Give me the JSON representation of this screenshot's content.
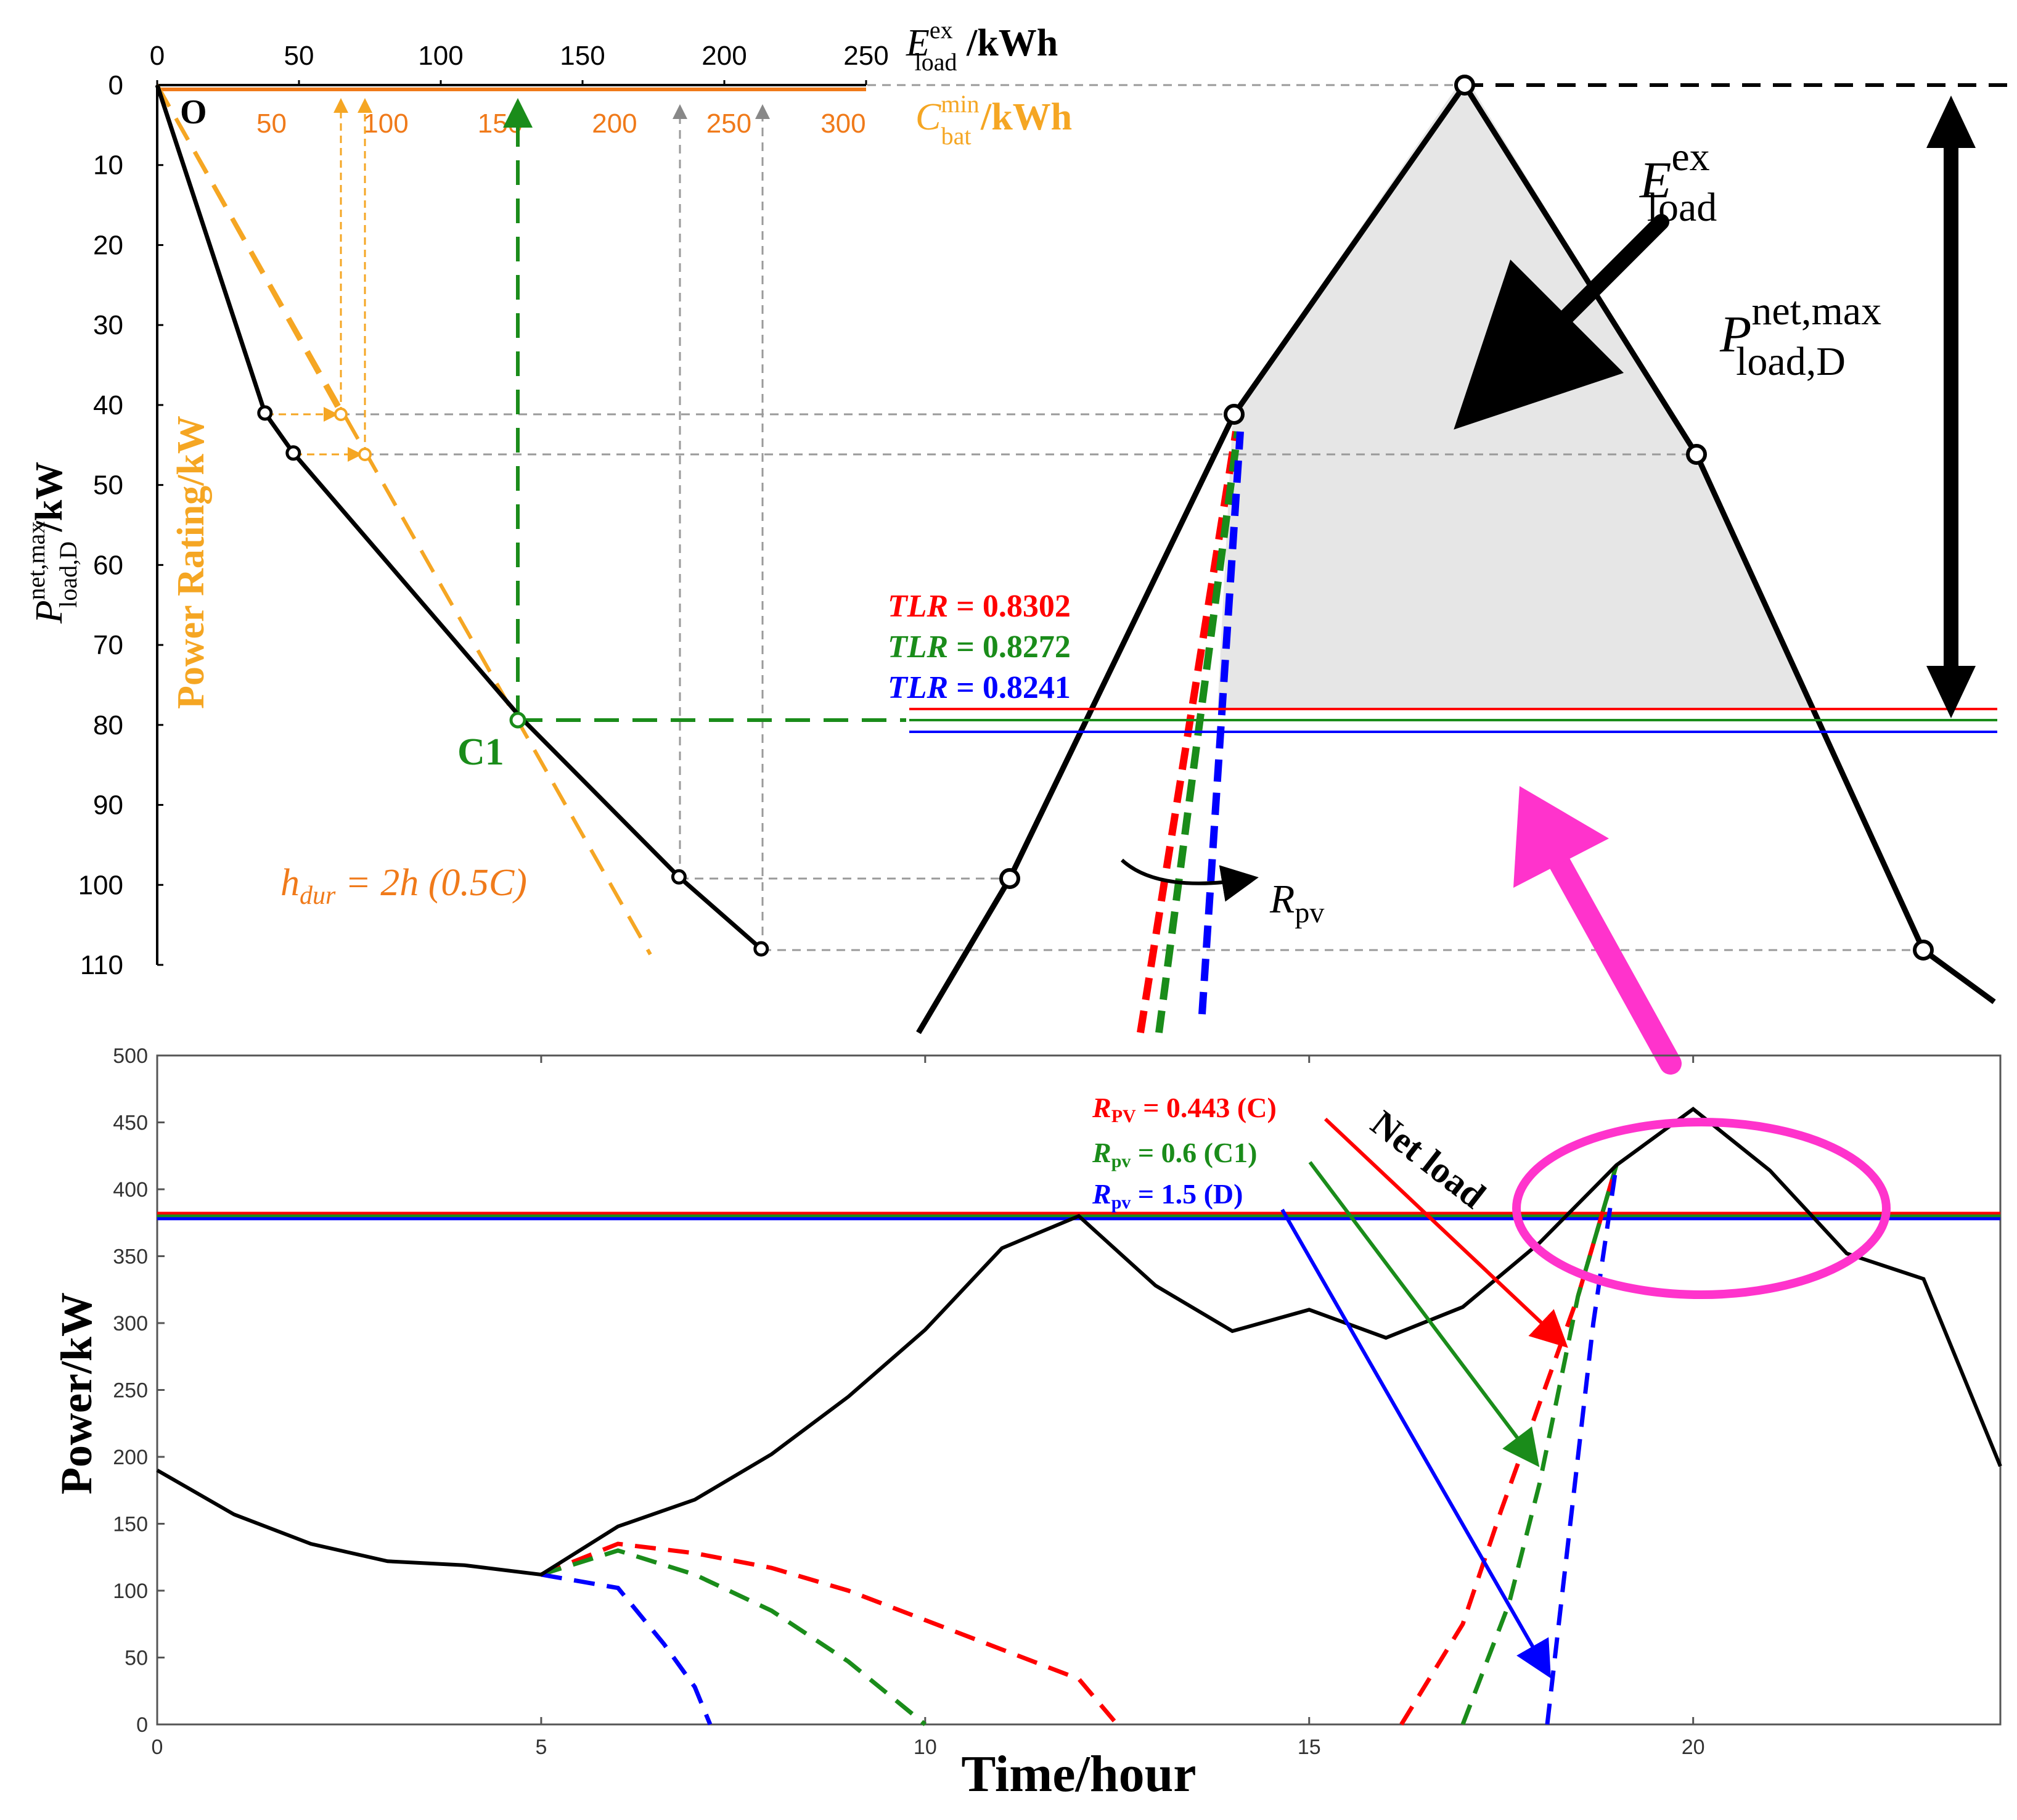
{
  "colors": {
    "orange": "#f5a623",
    "orange2": "#f07a1a",
    "green": "#1a8c1a",
    "red": "#ff0000",
    "blue": "#0000ff",
    "gray": "#9a9a9a",
    "magenta": "#ff33cc",
    "shade": "#e6e6e6"
  },
  "top": {
    "top_axis_label": "E",
    "top_axis_sup": "ex",
    "top_axis_sub": "load",
    "top_axis_unit": " /kWh",
    "orange_axis_label": "C",
    "orange_axis_sup": "min",
    "orange_axis_sub": "bat",
    "orange_axis_unit": " /kWh",
    "y_label": "P",
    "y_label_sup": "net,max",
    "y_label_sub": "load,D",
    "y_label_unit": " /kW",
    "power_rating_label": "Power Rating/kW",
    "origin_label": "O",
    "c1_label": "C1",
    "hdur_label": "h",
    "hdur_sub": "dur",
    "hdur_rest": " = 2h (0.5C)",
    "eload_label": "E",
    "eload_sup": "ex",
    "eload_sub": "load",
    "pnet_label": "P",
    "pnet_sup": "net,max",
    "pnet_sub": "load,D",
    "rpv_label": "R",
    "rpv_sub": "pv",
    "tlr": [
      {
        "label": "TLR = 0.8302",
        "color": "red"
      },
      {
        "label": "TLR = 0.8272",
        "color": "green"
      },
      {
        "label": "TLR = 0.8241",
        "color": "blue"
      }
    ]
  },
  "chart_data": [
    {
      "type": "line",
      "title": "",
      "x_top_ticks": [
        0,
        50,
        100,
        150,
        200,
        250
      ],
      "x_orange_ticks": [
        50,
        100,
        150,
        200,
        250,
        300
      ],
      "y_ticks": [
        0,
        10,
        20,
        30,
        40,
        50,
        60,
        70,
        80,
        90,
        100,
        110
      ],
      "ylim": [
        0,
        110
      ],
      "xlim": [
        0,
        250
      ],
      "series": [
        {
          "x": [
            0,
            38,
            48,
            128,
            184,
            213
          ],
          "y": [
            0,
            41,
            46,
            79,
            99,
            108
          ]
        }
      ],
      "c1_point": {
        "x": 128,
        "y": 79
      }
    },
    {
      "type": "line",
      "title": "",
      "xlabel": "Time/hour",
      "ylabel": "Power/kW",
      "xlim": [
        0,
        24
      ],
      "ylim": [
        0,
        500
      ],
      "x_ticks": [
        0,
        5,
        10,
        15,
        20
      ],
      "y_ticks": [
        0,
        50,
        100,
        150,
        200,
        250,
        300,
        350,
        400,
        450,
        500
      ],
      "net_load": {
        "name": "Net load",
        "x": [
          0,
          1,
          2,
          3,
          4,
          5,
          6,
          7,
          8,
          9,
          10,
          11,
          12,
          13,
          14,
          15,
          16,
          17,
          18,
          19,
          20,
          21,
          22,
          23,
          24
        ],
        "y": [
          190,
          157,
          135,
          122,
          119,
          112,
          148,
          168,
          202,
          245,
          295,
          356,
          380,
          328,
          294,
          310,
          289,
          312,
          360,
          418,
          460,
          414,
          352,
          333,
          193
        ]
      },
      "threshold_lines": [
        {
          "color": "red",
          "value": 382
        },
        {
          "color": "green",
          "value": 380
        },
        {
          "color": "blue",
          "value": 378
        }
      ],
      "pv_curves": [
        {
          "label_r": "R",
          "label_sub": "PV",
          "label_rest": " = 0.443 (C)",
          "color": "red",
          "morning": {
            "x": [
              5,
              6,
              7,
              8,
              9,
              10,
              11,
              12,
              12.5
            ],
            "y": [
              112,
              135,
              128,
              117,
              100,
              78,
              56,
              34,
              0
            ]
          },
          "evening": {
            "x": [
              16.2,
              17,
              17.5,
              18,
              18.5,
              19
            ],
            "y": [
              0,
              75,
              160,
              240,
              320,
              418
            ]
          }
        },
        {
          "label_r": "R",
          "label_sub": "pv",
          "label_rest": " = 0.6 (C1)",
          "color": "green",
          "morning": {
            "x": [
              5,
              6,
              7,
              8,
              9,
              10
            ],
            "y": [
              112,
              130,
              112,
              85,
              47,
              0
            ]
          },
          "evening": {
            "x": [
              17,
              17.6,
              18,
              18.5,
              19
            ],
            "y": [
              0,
              90,
              180,
              320,
              418
            ]
          }
        },
        {
          "label_r": "R",
          "label_sub": "pv",
          "label_rest": " = 1.5 (D)",
          "color": "blue",
          "morning": {
            "x": [
              5,
              6,
              6.6,
              7,
              7.2
            ],
            "y": [
              112,
              102,
              60,
              28,
              0
            ]
          },
          "evening": {
            "x": [
              18.1,
              18.4,
              18.7,
              19
            ],
            "y": [
              0,
              150,
              300,
              418
            ]
          }
        }
      ]
    }
  ]
}
